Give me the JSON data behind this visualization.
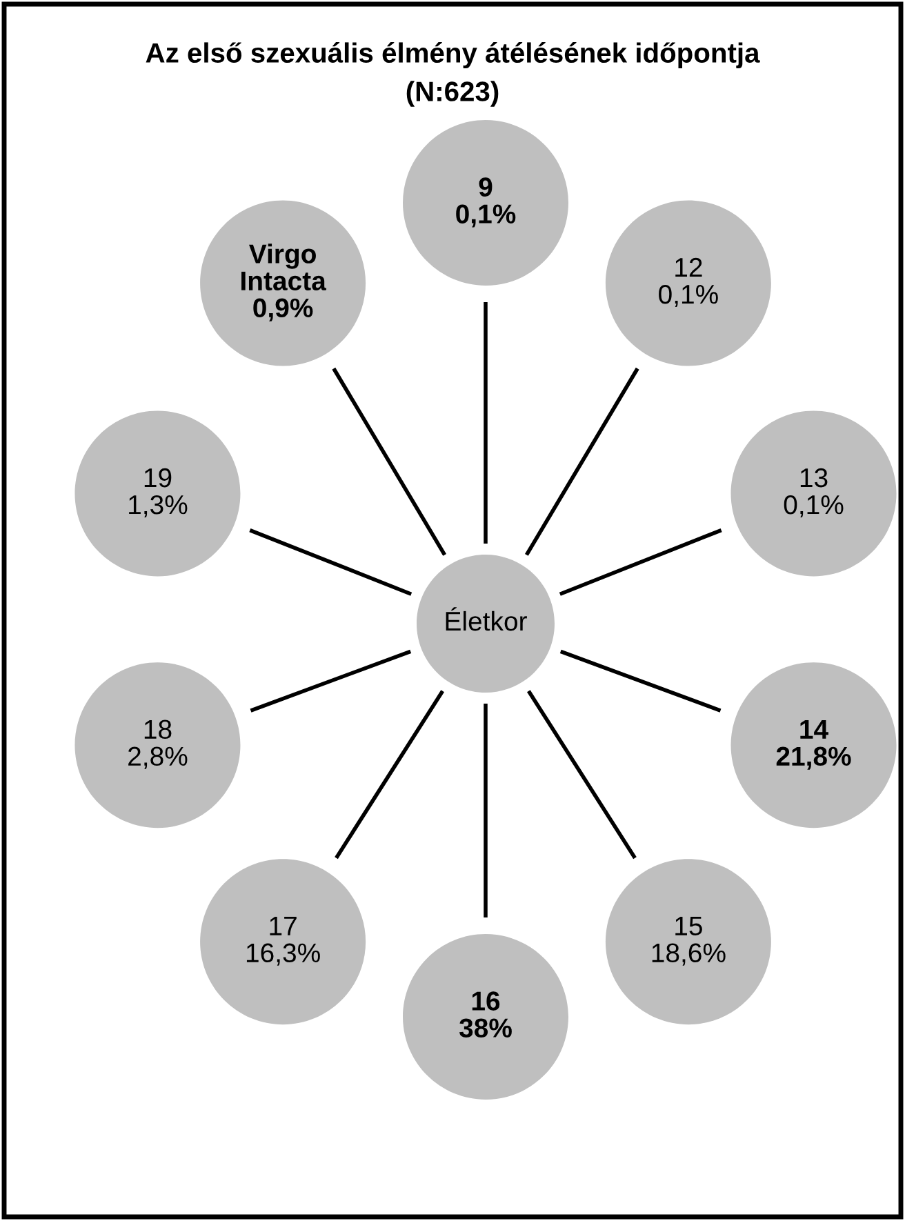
{
  "chart_data": {
    "type": "other",
    "title": "Az első szexuális élmény átélésének időpontja",
    "subtitle": "(N:623)",
    "annotations": [
      "Életkor"
    ],
    "categories": [
      "9",
      "12",
      "13",
      "14",
      "15",
      "16",
      "17",
      "18",
      "19",
      "Virgo Intacta"
    ],
    "values": [
      0.1,
      0.1,
      0.1,
      21.8,
      18.6,
      38,
      16.3,
      2.8,
      1.3,
      0.9
    ],
    "value_labels": [
      "0,1%",
      "0,1%",
      "0,1%",
      "21,8%",
      "18,6%",
      "38%",
      "16,3%",
      "2,8%",
      "1,3%",
      "0,9%"
    ],
    "colors": [
      "#bfbfbf",
      "#bfbfbf",
      "#bfbfbf",
      "#bfbfbf",
      "#bfbfbf",
      "#bfbfbf",
      "#bfbfbf",
      "#bfbfbf",
      "#bfbfbf",
      "#bfbfbf"
    ]
  }
}
